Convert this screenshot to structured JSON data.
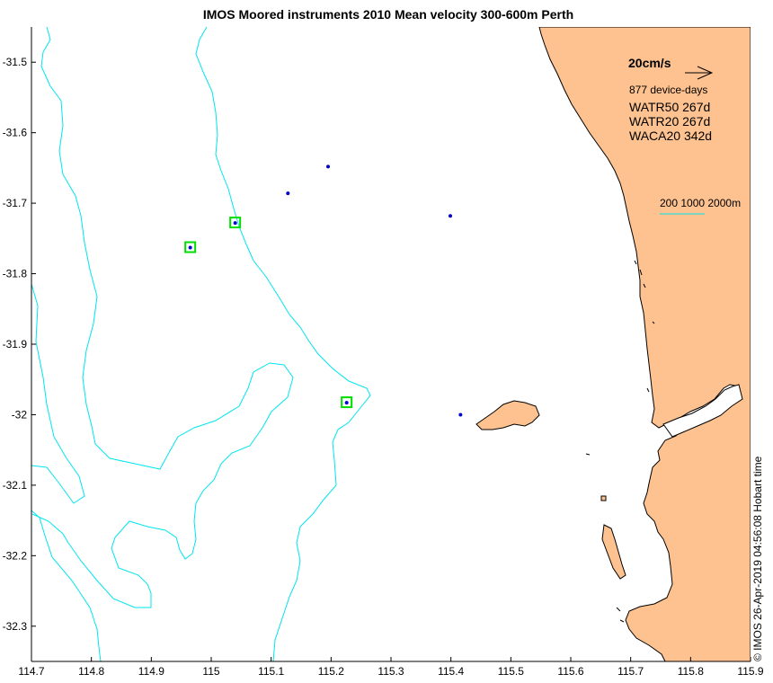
{
  "title": "IMOS Moored instruments 2010 Mean velocity 300-600m Perth",
  "chart_data": {
    "type": "map",
    "title": "IMOS Moored instruments 2010 Mean velocity 300-600m Perth",
    "xlim": [
      114.7,
      115.9
    ],
    "ylim": [
      -32.35,
      -31.45
    ],
    "xticks": [
      114.7,
      114.8,
      114.9,
      115,
      115.1,
      115.2,
      115.3,
      115.4,
      115.5,
      115.6,
      115.7,
      115.8,
      115.9
    ],
    "xtick_labels": [
      "114.7",
      "114.8",
      "114.9",
      "115",
      "115.1",
      "115.2",
      "115.3",
      "115.4",
      "115.5",
      "115.6",
      "115.7",
      "115.8",
      "115.9"
    ],
    "yticks": [
      -31.5,
      -31.6,
      -31.7,
      -31.8,
      -31.9,
      -32,
      -32.1,
      -32.2,
      -32.3
    ],
    "ytick_labels": [
      "-31.5",
      "-31.6",
      "-31.7",
      "-31.8",
      "-31.9",
      "-32",
      "-32.1",
      "-32.2",
      "-32.3"
    ],
    "moorings": [
      {
        "lon": 115.195,
        "lat": -31.648,
        "highlighted": false
      },
      {
        "lon": 115.128,
        "lat": -31.686,
        "highlighted": false
      },
      {
        "lon": 115.399,
        "lat": -31.718,
        "highlighted": false
      },
      {
        "lon": 115.04,
        "lat": -31.728,
        "highlighted": true
      },
      {
        "lon": 114.965,
        "lat": -31.763,
        "highlighted": true
      },
      {
        "lon": 115.226,
        "lat": -31.983,
        "highlighted": true
      },
      {
        "lon": 115.416,
        "lat": -32.0,
        "highlighted": false
      }
    ]
  },
  "legend": {
    "scale_label": "20cm/s",
    "device_days": "877 device-days",
    "entries": [
      "WATR50 267d",
      "WATR20 267d",
      "WACA20 342d"
    ],
    "isobath_label": "200 1000 2000m"
  },
  "timestamp": "© IMOS 26-Apr-2019 04:56:08 Hobart time",
  "colors": {
    "land": "#FDC28F",
    "isobath": "#00E5EE",
    "mooring": "#0000CC",
    "highlight": "#00DD00"
  }
}
